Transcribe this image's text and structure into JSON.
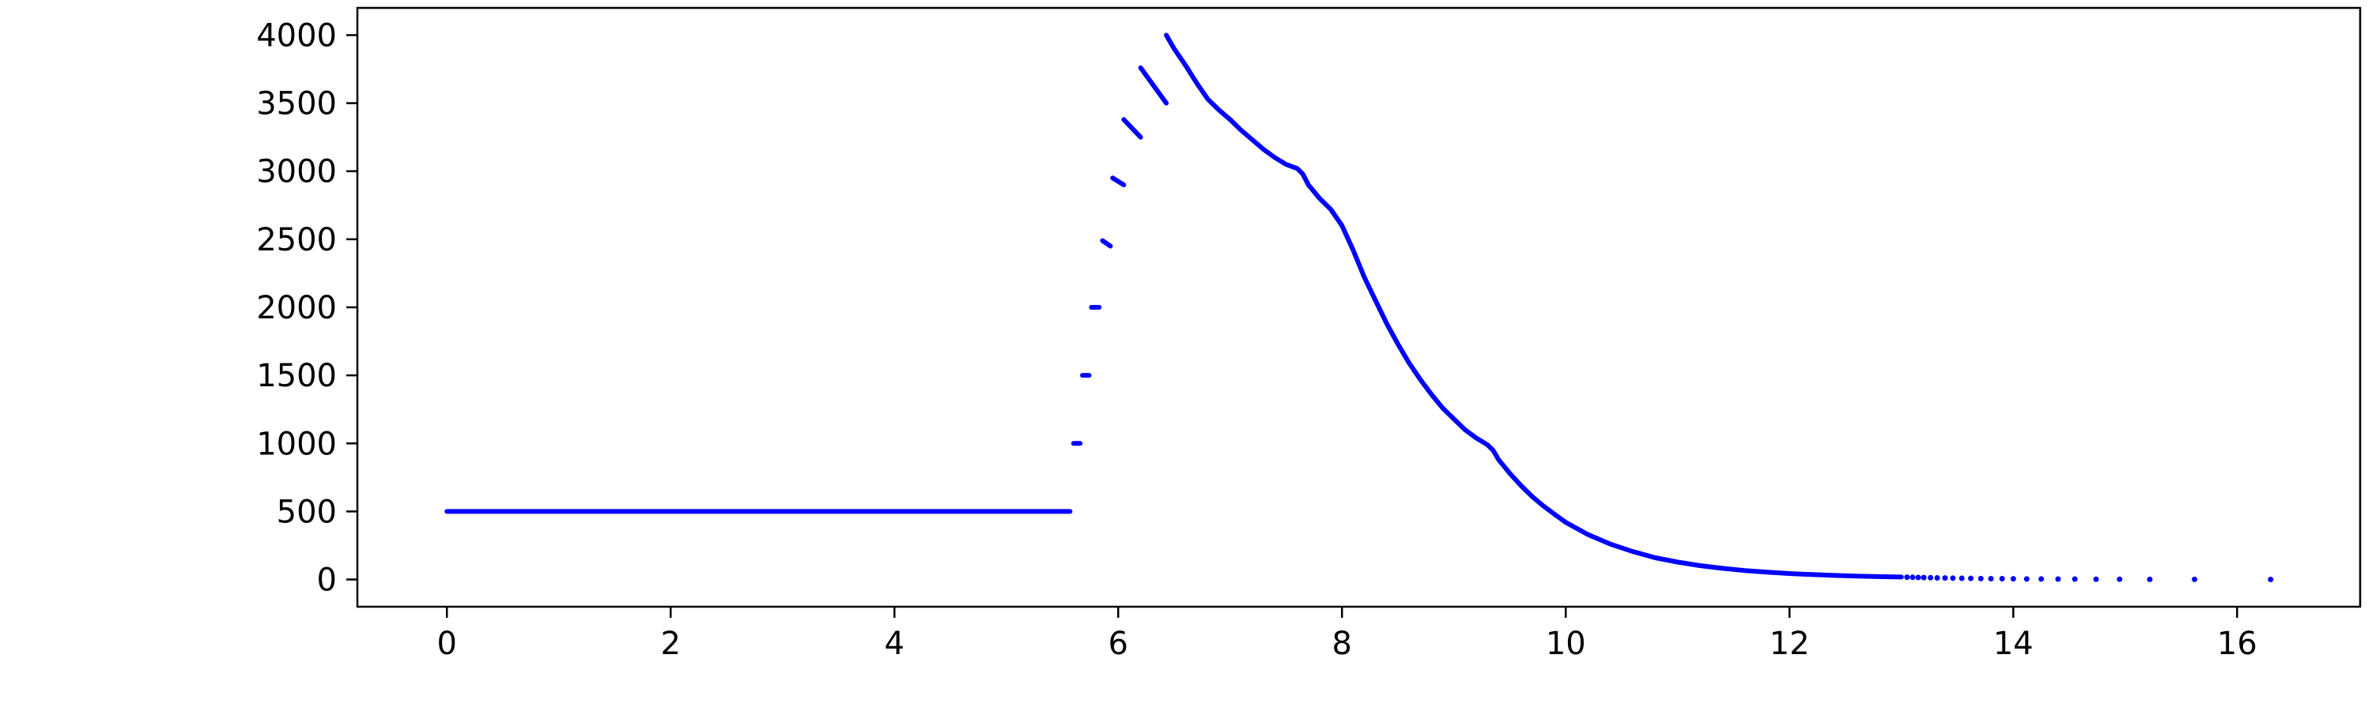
{
  "chart_data": {
    "type": "scatter",
    "title": "",
    "xlabel": "",
    "ylabel": "",
    "xlim": [
      -0.8,
      17.1
    ],
    "ylim": [
      -200,
      4200
    ],
    "xticks": [
      0,
      2,
      4,
      6,
      8,
      10,
      12,
      14,
      16
    ],
    "yticks": [
      0,
      500,
      1000,
      1500,
      2000,
      2500,
      3000,
      3500,
      4000
    ],
    "grid": false,
    "legend": "none",
    "series": [
      {
        "color": "#0000ff",
        "segments": [
          {
            "x": [
              0.0,
              5.57
            ],
            "y": [
              500,
              500
            ]
          },
          {
            "x": [
              5.6,
              5.66
            ],
            "y": [
              1000,
              1000
            ]
          },
          {
            "x": [
              5.68,
              5.74
            ],
            "y": [
              1500,
              1500
            ]
          },
          {
            "x": [
              5.76,
              5.83
            ],
            "y": [
              2000,
              2000
            ]
          },
          {
            "x": [
              5.86,
              5.93
            ],
            "y": [
              2490,
              2450
            ]
          },
          {
            "x": [
              5.95,
              6.05
            ],
            "y": [
              2950,
              2900
            ]
          },
          {
            "x": [
              6.05,
              6.2
            ],
            "y": [
              3380,
              3250
            ]
          },
          {
            "x": [
              6.2,
              6.43
            ],
            "y": [
              3760,
              3500
            ]
          },
          {
            "x": [
              6.43,
              6.5,
              6.6,
              6.7,
              6.8,
              6.9,
              7.0,
              7.1,
              7.2,
              7.3,
              7.4,
              7.5,
              7.6,
              7.65,
              7.7,
              7.8,
              7.9,
              8.0,
              8.1,
              8.2,
              8.3,
              8.4,
              8.5,
              8.6,
              8.7,
              8.8,
              8.9,
              9.0,
              9.1,
              9.2,
              9.3,
              9.35,
              9.4,
              9.5,
              9.6,
              9.7,
              9.8,
              9.9,
              10.0,
              10.2,
              10.4,
              10.6,
              10.8,
              11.0,
              11.2,
              11.4,
              11.6,
              11.8,
              12.0,
              12.2,
              12.4,
              12.6,
              12.8,
              13.0
            ],
            "y": [
              4000,
              3900,
              3780,
              3650,
              3530,
              3450,
              3380,
              3300,
              3230,
              3160,
              3100,
              3050,
              3020,
              2980,
              2900,
              2800,
              2720,
              2600,
              2420,
              2220,
              2050,
              1880,
              1730,
              1590,
              1470,
              1360,
              1260,
              1180,
              1100,
              1040,
              990,
              950,
              880,
              780,
              690,
              610,
              540,
              480,
              420,
              330,
              260,
              205,
              160,
              128,
              102,
              82,
              66,
              54,
              44,
              36,
              30,
              25,
              21,
              18
            ]
          }
        ],
        "dots": {
          "x": [
            13.05,
            13.1,
            13.15,
            13.2,
            13.26,
            13.32,
            13.39,
            13.46,
            13.54,
            13.62,
            13.71,
            13.8,
            13.9,
            14.0,
            14.12,
            14.25,
            14.4,
            14.55,
            14.74,
            14.95,
            15.22,
            15.62,
            16.3
          ],
          "y": [
            17,
            16,
            15,
            14,
            13,
            12,
            11,
            10,
            9,
            8,
            7,
            6,
            6,
            5,
            4,
            4,
            3,
            3,
            2,
            2,
            1,
            1,
            0
          ]
        }
      }
    ]
  }
}
